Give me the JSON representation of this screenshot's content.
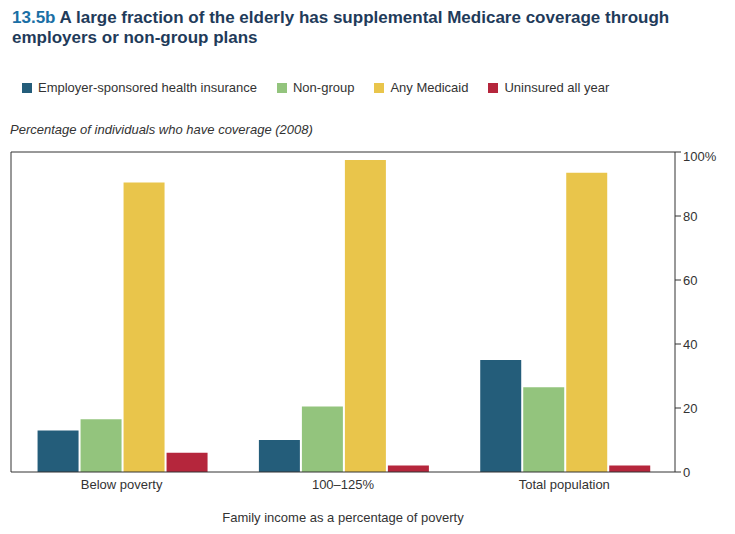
{
  "chart_data": {
    "type": "bar",
    "title": "13.5b A large fraction of the elderly has supplemental Medicare coverage through employers or non-group plans",
    "subtitle": "Percentage of individuals who have coverage (2008)",
    "x_label": "Family income as a percentage of poverty",
    "categories": [
      "Below poverty",
      "100–125%",
      "Total population"
    ],
    "series": [
      {
        "name": "Employer-sponsored health insurance",
        "color": "#245d7a",
        "values": [
          13,
          10,
          35
        ]
      },
      {
        "name": "Non-group",
        "color": "#93c47d",
        "values": [
          16.5,
          20.5,
          26.5
        ]
      },
      {
        "name": "Any Medicaid",
        "color": "#e9c54b",
        "values": [
          90.5,
          97.5,
          93.5
        ]
      },
      {
        "name": "Uninsured all year",
        "color": "#b5263c",
        "values": [
          6,
          2,
          2
        ]
      }
    ],
    "ylim": [
      0,
      100
    ],
    "yticks": [
      0,
      20,
      40,
      60,
      80,
      {
        "value": 100,
        "label": "100%"
      }
    ],
    "grid": false,
    "legend": "top"
  }
}
